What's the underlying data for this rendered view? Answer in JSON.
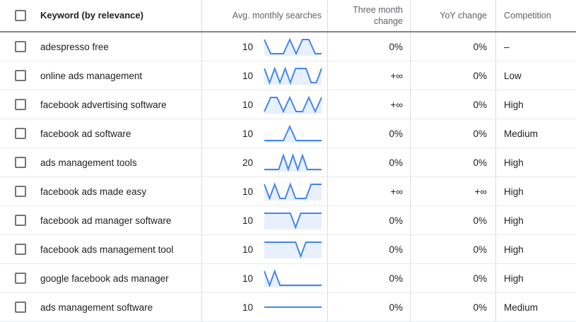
{
  "colors": {
    "sparkline_line": "#4285f4",
    "sparkline_fill": "#e8f0fe"
  },
  "table": {
    "columns": {
      "keyword": "Keyword (by relevance)",
      "avg_monthly_searches": "Avg. monthly searches",
      "three_month_change": "Three month change",
      "yoy_change": "YoY change",
      "competition": "Competition"
    },
    "rows": [
      {
        "keyword": "adespresso free",
        "avg_monthly_searches": "10",
        "three_month_change": "0%",
        "yoy_change": "0%",
        "competition": "–",
        "trend": [
          1,
          0,
          0,
          0,
          1,
          0,
          1,
          1,
          0,
          0
        ],
        "trend_fill": true
      },
      {
        "keyword": "online ads management",
        "avg_monthly_searches": "10",
        "three_month_change": "+∞",
        "yoy_change": "0%",
        "competition": "Low",
        "trend": [
          1,
          0,
          1,
          0,
          1,
          0,
          1,
          1,
          1,
          0,
          0,
          1
        ],
        "trend_fill": true
      },
      {
        "keyword": "facebook advertising software",
        "avg_monthly_searches": "10",
        "three_month_change": "+∞",
        "yoy_change": "0%",
        "competition": "High",
        "trend": [
          0,
          1,
          1,
          0,
          1,
          0,
          0,
          1,
          0,
          1
        ],
        "trend_fill": true
      },
      {
        "keyword": "facebook ad software",
        "avg_monthly_searches": "10",
        "three_month_change": "0%",
        "yoy_change": "0%",
        "competition": "Medium",
        "trend": [
          0,
          0,
          0,
          0,
          1,
          0,
          0,
          0,
          0,
          0
        ],
        "trend_fill": true
      },
      {
        "keyword": "ads management tools",
        "avg_monthly_searches": "20",
        "three_month_change": "0%",
        "yoy_change": "0%",
        "competition": "High",
        "trend": [
          0,
          0,
          0,
          0,
          1,
          0,
          1,
          0,
          1,
          0,
          0,
          0,
          0
        ],
        "trend_fill": true
      },
      {
        "keyword": "facebook ads made easy",
        "avg_monthly_searches": "10",
        "three_month_change": "+∞",
        "yoy_change": "+∞",
        "competition": "High",
        "trend": [
          1,
          0,
          1,
          0,
          0,
          1,
          0,
          0,
          0,
          1,
          1,
          1
        ],
        "trend_fill": true
      },
      {
        "keyword": "facebook ad manager software",
        "avg_monthly_searches": "10",
        "three_month_change": "0%",
        "yoy_change": "0%",
        "competition": "High",
        "trend": [
          1,
          1,
          1,
          1,
          1,
          1,
          0,
          1,
          1,
          1,
          1,
          1
        ],
        "trend_fill": true
      },
      {
        "keyword": "facebook ads management tool",
        "avg_monthly_searches": "10",
        "three_month_change": "0%",
        "yoy_change": "0%",
        "competition": "High",
        "trend": [
          1,
          1,
          1,
          1,
          1,
          1,
          1,
          0,
          1,
          1,
          1,
          1
        ],
        "trend_fill": true
      },
      {
        "keyword": "google facebook ads manager",
        "avg_monthly_searches": "10",
        "three_month_change": "0%",
        "yoy_change": "0%",
        "competition": "High",
        "trend": [
          1,
          0,
          1,
          0,
          0,
          0,
          0,
          0,
          0,
          0,
          0,
          0
        ],
        "trend_fill": true
      },
      {
        "keyword": "ads management software",
        "avg_monthly_searches": "10",
        "three_month_change": "0%",
        "yoy_change": "0%",
        "competition": "Medium",
        "trend": [
          0.5,
          0.5,
          0.5,
          0.5,
          0.5,
          0.5,
          0.5,
          0.5,
          0.5,
          0.5,
          0.5,
          0.5
        ],
        "trend_fill": false
      }
    ]
  }
}
